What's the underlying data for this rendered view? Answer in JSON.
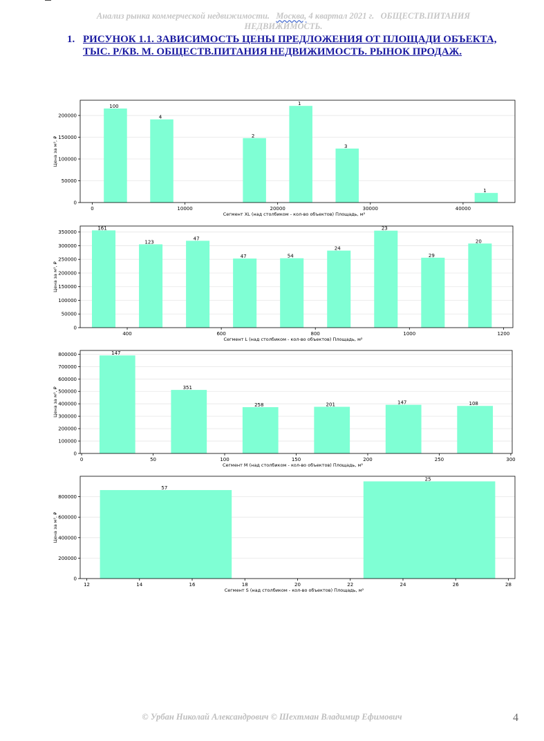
{
  "header": {
    "part1": "Анализ рынка коммерческой недвижимости.",
    "city": "Москва,",
    "part2": "4 квартал 2021 г.",
    "part3": "ОБЩЕСТВ.ПИТАНИЯ НЕДВИЖИМОСТЬ."
  },
  "title": {
    "number": "1.",
    "text": "РИСУНОК 1.1. ЗАВИСИМОСТЬ ЦЕНЫ ПРЕДЛОЖЕНИЯ ОТ ПЛОЩАДИ ОБЪЕКТА, ТЫС. Р/КВ. М. ОБЩЕСТВ.ПИТАНИЯ НЕДВИЖИМОСТЬ. РЫНОК ПРОДАЖ."
  },
  "colors": {
    "bar": "#7fffd4",
    "axis": "#000000",
    "grid": "#e6e6e6"
  },
  "chart_data": [
    {
      "type": "bar",
      "xlabel": "Сегмент XL (над столбиком - кол-во объектов)   Площадь, м²",
      "ylabel": "Цена за м², ₽",
      "xlim": [
        -1300,
        45600
      ],
      "ylim": [
        0,
        235000
      ],
      "xticks": [
        0,
        10000,
        20000,
        30000,
        40000
      ],
      "yticks": [
        0,
        50000,
        100000,
        150000,
        200000
      ],
      "bar_width": 2500,
      "x": [
        2500,
        7500,
        17500,
        22500,
        27500,
        42500
      ],
      "values": [
        216000,
        191000,
        148000,
        222000,
        124000,
        22000
      ],
      "labels": [
        "100",
        "4",
        "2",
        "1",
        "3",
        "1"
      ],
      "grid": true
    },
    {
      "type": "bar",
      "xlabel": "Сегмент L (над столбиком - кол-во объектов)   Площадь, м²",
      "ylabel": "Цена за м², ₽",
      "xlim": [
        300,
        1220
      ],
      "ylim": [
        0,
        372000
      ],
      "xticks": [
        400,
        600,
        800,
        1000,
        1200
      ],
      "yticks": [
        0,
        50000,
        100000,
        150000,
        200000,
        250000,
        300000,
        350000
      ],
      "bar_width": 50,
      "x": [
        350,
        450,
        550,
        650,
        750,
        850,
        950,
        1050,
        1150
      ],
      "values": [
        356000,
        305000,
        318000,
        253000,
        254000,
        282000,
        355000,
        256000,
        308000
      ],
      "labels": [
        "161",
        "123",
        "47",
        "47",
        "54",
        "24",
        "23",
        "29",
        "20"
      ],
      "grid": true
    },
    {
      "type": "bar",
      "xlabel": "Сегмент M (над столбиком - кол-во объектов)   Площадь, м²",
      "ylabel": "Цена за м², ₽",
      "xlim": [
        -1,
        301
      ],
      "ylim": [
        0,
        830000
      ],
      "xticks": [
        0,
        50,
        100,
        150,
        200,
        250,
        300
      ],
      "yticks": [
        0,
        100000,
        200000,
        300000,
        400000,
        500000,
        600000,
        700000,
        800000
      ],
      "bar_width": 25,
      "x": [
        25,
        75,
        125,
        175,
        225,
        275
      ],
      "values": [
        790000,
        512000,
        373000,
        376000,
        392000,
        383000
      ],
      "labels": [
        "147",
        "351",
        "258",
        "201",
        "147",
        "108"
      ],
      "grid": true
    },
    {
      "type": "bar",
      "xlabel": "Сегмент S (над столбиком - кол-во объектов)   Площадь, м²",
      "ylabel": "Цена за м², ₽",
      "xlim": [
        11.75,
        28.25
      ],
      "ylim": [
        0,
        1000000
      ],
      "xticks": [
        12,
        14,
        16,
        18,
        20,
        22,
        24,
        26,
        28
      ],
      "yticks": [
        0,
        200000,
        400000,
        600000,
        800000
      ],
      "bar_width": 5,
      "x": [
        15,
        25
      ],
      "values": [
        865000,
        950000
      ],
      "labels": [
        "57",
        "25"
      ],
      "grid": true
    }
  ],
  "footer": "© Урбан Николай Александрович   © Шехтман Владимир Ефимович",
  "page_number": "4"
}
